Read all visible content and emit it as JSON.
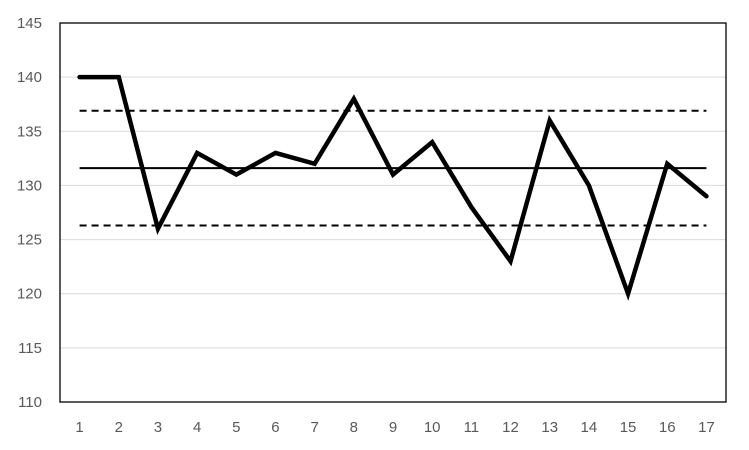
{
  "chart_data": {
    "type": "line",
    "title": "",
    "xlabel": "",
    "ylabel": "",
    "x": [
      1,
      2,
      3,
      4,
      5,
      6,
      7,
      8,
      9,
      10,
      11,
      12,
      13,
      14,
      15,
      16,
      17
    ],
    "x_tick_labels": [
      "1",
      "2",
      "3",
      "4",
      "5",
      "6",
      "7",
      "8",
      "9",
      "10",
      "11",
      "12",
      "13",
      "14",
      "15",
      "16",
      "17"
    ],
    "y_tick_labels": [
      "110",
      "115",
      "120",
      "125",
      "130",
      "135",
      "140",
      "145"
    ],
    "ylim": [
      110,
      145
    ],
    "grid": true,
    "legend": "none",
    "series": [
      {
        "values": [
          140,
          140,
          126,
          133,
          131,
          133,
          132,
          138,
          131,
          134,
          128,
          123,
          136,
          130,
          120,
          132,
          129
        ],
        "color": "#000000",
        "style": "solid-thick"
      }
    ],
    "reference_lines": [
      {
        "value": 131.6,
        "style": "solid",
        "color": "#000000"
      },
      {
        "value": 136.9,
        "style": "dashed",
        "color": "#000000"
      },
      {
        "value": 126.3,
        "style": "dashed",
        "color": "#000000"
      }
    ],
    "colors": {
      "grid": "#d9d9d9",
      "axis": "#000000",
      "tick_text": "#595959"
    }
  }
}
